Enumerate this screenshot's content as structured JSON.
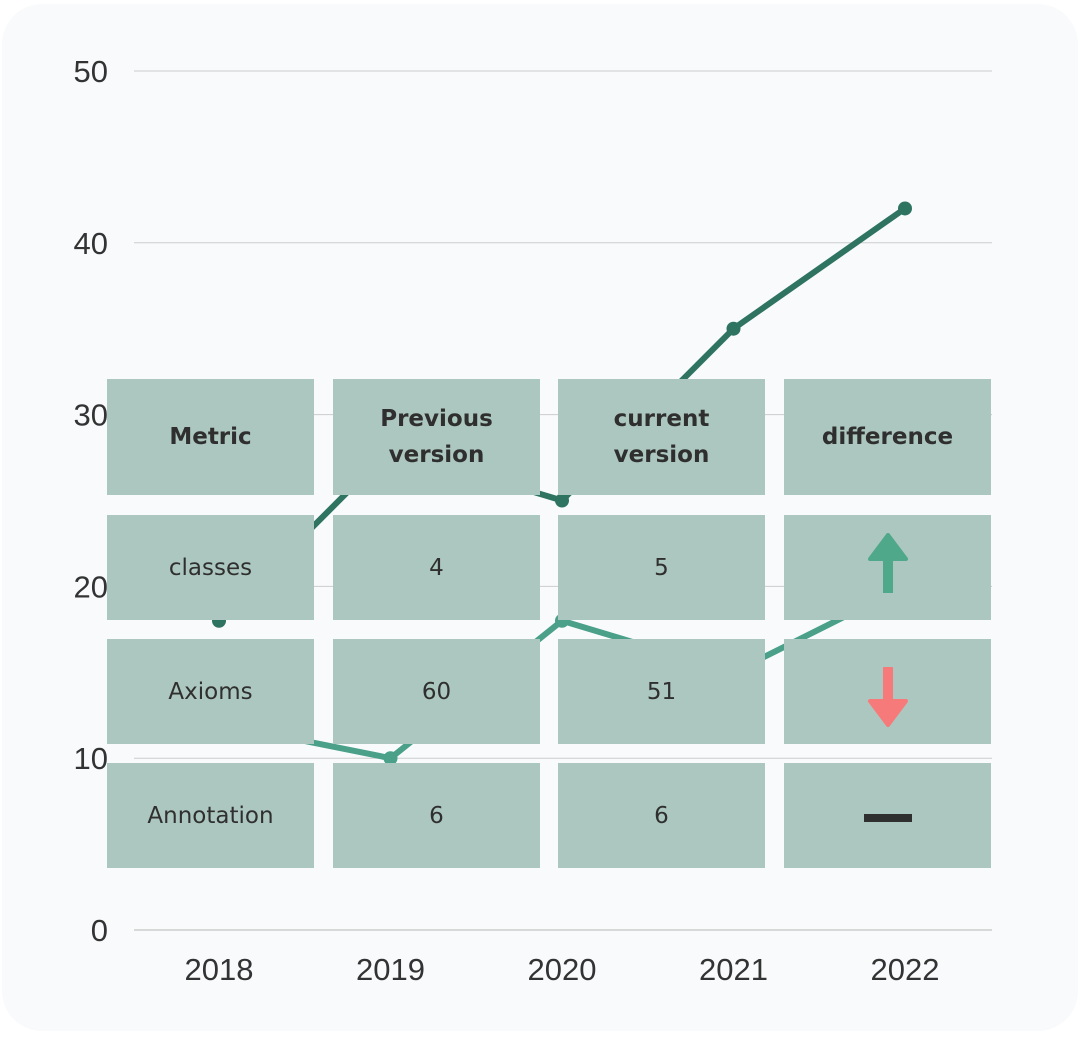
{
  "chart_data": {
    "type": "line",
    "x": [
      "2018",
      "2019",
      "2020",
      "2021",
      "2022"
    ],
    "ylim": [
      0,
      50
    ],
    "yticks": [
      0,
      10,
      20,
      30,
      40,
      50
    ],
    "grid": true,
    "title": "",
    "xlabel": "",
    "ylabel": "",
    "series": [
      {
        "values": [
          18,
          28,
          25,
          35,
          42
        ],
        "color": "#2f7361"
      },
      {
        "values": [
          12,
          10,
          18,
          15,
          20
        ],
        "color": "#4aa088"
      }
    ]
  },
  "table": {
    "headers": [
      "Metric",
      "Previous\nversion",
      "current\nversion",
      "difference"
    ],
    "rows": [
      {
        "metric": "classes",
        "previous": "4",
        "current": "5",
        "difference": "arrow-up-icon"
      },
      {
        "metric": "Axioms",
        "previous": "60",
        "current": "51",
        "difference": "arrow-down-icon"
      },
      {
        "metric": "Annotation",
        "previous": "6",
        "current": "6",
        "difference": "dash-icon"
      }
    ]
  },
  "colors": {
    "up": "#4fa88a",
    "down": "#f77a7a",
    "same": "#2f2f2f",
    "cell": "#acc7bf",
    "card": "#f8fafc",
    "grid": "#cccccc"
  }
}
